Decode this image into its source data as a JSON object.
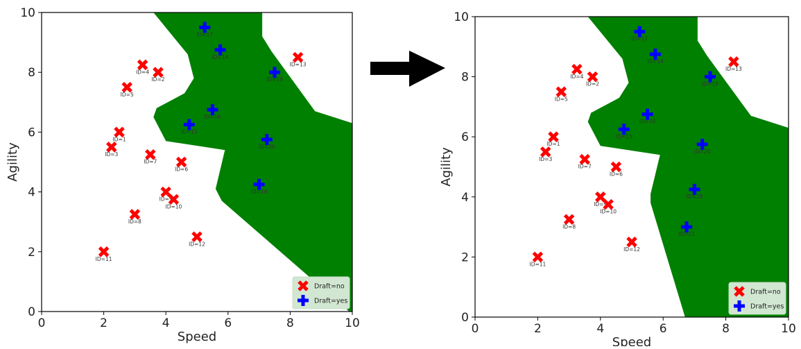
{
  "colors": {
    "region": "#008000",
    "no": "#ff0000",
    "yes": "#0000ff",
    "legend_bg": "#d2e7d2",
    "arrow": "#000000"
  },
  "arrow_icon": "right-arrow-icon",
  "chart_data": [
    {
      "type": "scatter",
      "title": "",
      "xlabel": "Speed",
      "ylabel": "Agility",
      "xlim": [
        0,
        10
      ],
      "ylim": [
        0,
        10
      ],
      "xticks": [
        "0",
        "2",
        "4",
        "6",
        "8",
        "10"
      ],
      "yticks": [
        "0",
        "2",
        "4",
        "6",
        "8",
        "10"
      ],
      "grid": false,
      "legend": {
        "placement": "bottom-right",
        "entries": [
          {
            "label": "Draft=no",
            "marker": "x",
            "color": "#ff0000"
          },
          {
            "label": "Draft=yes",
            "marker": "plus",
            "color": "#0000ff"
          }
        ]
      },
      "region": [
        [
          3.6,
          10
        ],
        [
          4.7,
          8.6
        ],
        [
          4.9,
          7.8
        ],
        [
          4.6,
          7.3
        ],
        [
          3.7,
          6.8
        ],
        [
          3.6,
          6.5
        ],
        [
          4,
          5.7
        ],
        [
          5.9,
          5.4
        ],
        [
          5.6,
          4.1
        ],
        [
          5.8,
          3.7
        ],
        [
          9.9,
          0
        ],
        [
          10,
          0
        ],
        [
          10,
          6.3
        ],
        [
          8.8,
          6.7
        ],
        [
          7.4,
          8.7
        ],
        [
          7.1,
          9.2
        ],
        [
          7.1,
          10
        ]
      ],
      "points": [
        {
          "id": "ID=1",
          "label": "ID=1",
          "x": 2.5,
          "y": 6.0,
          "draft": "no"
        },
        {
          "id": "ID=2",
          "label": "ID=2",
          "x": 3.75,
          "y": 8.0,
          "draft": "no"
        },
        {
          "id": "ID=3",
          "label": "ID=3",
          "x": 2.25,
          "y": 5.5,
          "draft": "no"
        },
        {
          "id": "ID=4",
          "label": "ID=4",
          "x": 3.25,
          "y": 8.25,
          "draft": "no"
        },
        {
          "id": "ID=5",
          "label": "ID=5",
          "x": 2.75,
          "y": 7.5,
          "draft": "no"
        },
        {
          "id": "ID=6",
          "label": "ID=6",
          "x": 4.5,
          "y": 5.0,
          "draft": "no"
        },
        {
          "id": "ID=7",
          "label": "ID=7",
          "x": 3.5,
          "y": 5.25,
          "draft": "no"
        },
        {
          "id": "ID=8",
          "label": "ID=8",
          "x": 3.0,
          "y": 3.25,
          "draft": "no"
        },
        {
          "id": "ID=9",
          "label": "ID=9",
          "x": 4.0,
          "y": 4.0,
          "draft": "no"
        },
        {
          "id": "ID=10",
          "label": "ID=10",
          "x": 4.25,
          "y": 3.75,
          "draft": "no"
        },
        {
          "id": "ID=11",
          "label": "ID=11",
          "x": 2.0,
          "y": 2.0,
          "draft": "no"
        },
        {
          "id": "ID=12",
          "label": "ID=12",
          "x": 5.0,
          "y": 2.5,
          "draft": "no"
        },
        {
          "id": "ID=13",
          "label": "ID=13",
          "x": 8.25,
          "y": 8.5,
          "draft": "no"
        },
        {
          "id": "ID=14",
          "label": "ID=14",
          "x": 5.75,
          "y": 8.75,
          "draft": "yes"
        },
        {
          "id": "ID=15",
          "label": "ID=15",
          "x": 4.75,
          "y": 6.25,
          "draft": "yes"
        },
        {
          "id": "ID=16",
          "label": "ID=16",
          "x": 5.5,
          "y": 6.75,
          "draft": "yes"
        },
        {
          "id": "ID=17",
          "label": "ID=17",
          "x": 5.25,
          "y": 9.5,
          "draft": "yes"
        },
        {
          "id": "ID=18",
          "label": "ID=18",
          "x": 7.0,
          "y": 4.25,
          "draft": "yes"
        },
        {
          "id": "ID=19",
          "label": "ID=19",
          "x": 7.5,
          "y": 8.0,
          "draft": "yes"
        },
        {
          "id": "ID=20",
          "label": "ID=20",
          "x": 7.25,
          "y": 5.75,
          "draft": "yes"
        }
      ]
    },
    {
      "type": "scatter",
      "title": "",
      "xlabel": "Speed",
      "ylabel": "Agility",
      "xlim": [
        0,
        10
      ],
      "ylim": [
        0,
        10
      ],
      "xticks": [
        "0",
        "2",
        "4",
        "6",
        "8",
        "10"
      ],
      "yticks": [
        "0",
        "2",
        "4",
        "6",
        "8",
        "10"
      ],
      "grid": false,
      "legend": {
        "placement": "bottom-right",
        "entries": [
          {
            "label": "Draft=no",
            "marker": "x",
            "color": "#ff0000"
          },
          {
            "label": "Draft=yes",
            "marker": "plus",
            "color": "#0000ff"
          }
        ]
      },
      "region": [
        [
          3.6,
          10
        ],
        [
          4.7,
          8.6
        ],
        [
          4.9,
          7.8
        ],
        [
          4.6,
          7.3
        ],
        [
          3.7,
          6.8
        ],
        [
          3.6,
          6.5
        ],
        [
          4,
          5.7
        ],
        [
          5.9,
          5.4
        ],
        [
          5.6,
          4.1
        ],
        [
          5.6,
          3.8
        ],
        [
          6.7,
          0
        ],
        [
          10,
          0
        ],
        [
          10,
          6.3
        ],
        [
          8.8,
          6.7
        ],
        [
          7.4,
          8.7
        ],
        [
          7.1,
          9.2
        ],
        [
          7.1,
          10
        ]
      ],
      "points": [
        {
          "id": "ID=1",
          "label": "ID=1",
          "x": 2.5,
          "y": 6.0,
          "draft": "no"
        },
        {
          "id": "ID=2",
          "label": "ID=2",
          "x": 3.75,
          "y": 8.0,
          "draft": "no"
        },
        {
          "id": "ID=3",
          "label": "ID=3",
          "x": 2.25,
          "y": 5.5,
          "draft": "no"
        },
        {
          "id": "ID=4",
          "label": "ID=4",
          "x": 3.25,
          "y": 8.25,
          "draft": "no"
        },
        {
          "id": "ID=5",
          "label": "ID=5",
          "x": 2.75,
          "y": 7.5,
          "draft": "no"
        },
        {
          "id": "ID=6",
          "label": "ID=6",
          "x": 4.5,
          "y": 5.0,
          "draft": "no"
        },
        {
          "id": "ID=7",
          "label": "ID=7",
          "x": 3.5,
          "y": 5.25,
          "draft": "no"
        },
        {
          "id": "ID=8",
          "label": "ID=8",
          "x": 3.0,
          "y": 3.25,
          "draft": "no"
        },
        {
          "id": "ID=9",
          "label": "ID=9",
          "x": 4.0,
          "y": 4.0,
          "draft": "no"
        },
        {
          "id": "ID=10",
          "label": "ID=10",
          "x": 4.25,
          "y": 3.75,
          "draft": "no"
        },
        {
          "id": "ID=11",
          "label": "ID=11",
          "x": 2.0,
          "y": 2.0,
          "draft": "no"
        },
        {
          "id": "ID=12",
          "label": "ID=12",
          "x": 5.0,
          "y": 2.5,
          "draft": "no"
        },
        {
          "id": "ID=13",
          "label": "ID=13",
          "x": 8.25,
          "y": 8.5,
          "draft": "no"
        },
        {
          "id": "ID=14",
          "label": "ID=14",
          "x": 5.75,
          "y": 8.75,
          "draft": "yes"
        },
        {
          "id": "ID=15",
          "label": "ID=15",
          "x": 4.75,
          "y": 6.25,
          "draft": "yes"
        },
        {
          "id": "ID=16",
          "label": "ID=16",
          "x": 5.5,
          "y": 6.75,
          "draft": "yes"
        },
        {
          "id": "ID=17",
          "label": "ID=17",
          "x": 5.25,
          "y": 9.5,
          "draft": "yes"
        },
        {
          "id": "ID=18",
          "label": "ID=18",
          "x": 7.0,
          "y": 4.25,
          "draft": "yes"
        },
        {
          "id": "ID=19",
          "label": "ID=19",
          "x": 7.5,
          "y": 8.0,
          "draft": "yes"
        },
        {
          "id": "ID=20",
          "label": "ID=20",
          "x": 7.25,
          "y": 5.75,
          "draft": "yes"
        },
        {
          "id": "ID=21",
          "label": "ID=21",
          "x": 6.75,
          "y": 3.0,
          "draft": "yes"
        }
      ]
    }
  ]
}
